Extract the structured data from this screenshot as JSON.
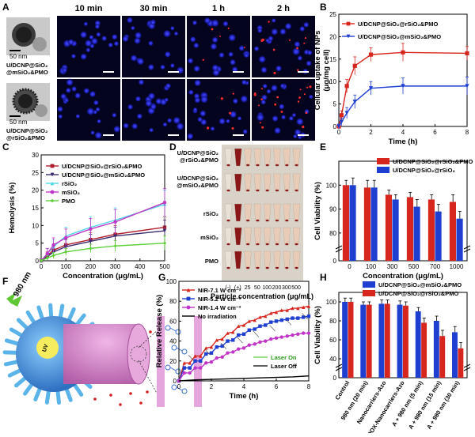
{
  "panels": {
    "A": {
      "letter": "A",
      "time_headers": [
        "10 min",
        "30 min",
        "1 h",
        "2 h"
      ],
      "rows": [
        {
          "label": [
            "U/DCNP@SiO₂",
            "@mSiO₂&PMO"
          ],
          "scale": "50 nm"
        },
        {
          "label": [
            "U/DCNP@SiO₂",
            "@rSiO₂&PMO"
          ],
          "scale": "50 nm"
        }
      ]
    },
    "D": {
      "letter": "D",
      "row_labels": [
        [
          "U/DCNP@SiO₂",
          "@rSiO₂&PMO"
        ],
        [
          "U/DCNP@SiO₂",
          "@mSiO₂&PMO"
        ],
        [
          "rSiO₂"
        ],
        [
          "mSiO₂"
        ],
        [
          "PMO"
        ]
      ],
      "tick_labels": [
        "(-)",
        "(+)",
        "25",
        "50",
        "100",
        "200",
        "300",
        "500"
      ],
      "xlabel": "Particle concentration (μg/mL)"
    },
    "F": {
      "letter": "F",
      "laser": "980 nm",
      "core_label": "UV"
    }
  },
  "chart_data": [
    {
      "id": "B",
      "type": "line",
      "letter": "B",
      "xlabel": "Time (h)",
      "ylabel": [
        "Cellular uptake of NPs",
        "(μg/mg cell)"
      ],
      "xlim": [
        0,
        8
      ],
      "ylim": [
        0,
        25
      ],
      "xticks": [
        "0",
        "2",
        "4",
        "6",
        "8"
      ],
      "yticks": [
        "0",
        "5",
        "10",
        "15",
        "20",
        "25"
      ],
      "series": [
        {
          "name": "U/DCNP@SiO₂@rSiO₂&PMO",
          "color": "#d7261e",
          "marker": "square",
          "x": [
            0,
            0.17,
            0.5,
            1,
            2,
            4,
            8
          ],
          "y": [
            0,
            2.5,
            9,
            13.5,
            16,
            16.5,
            16.3
          ],
          "err": [
            0.5,
            1,
            1.5,
            2,
            1.5,
            2,
            1.5
          ]
        },
        {
          "name": "U/DCNP@SiO₂@mSiO₂&PMO",
          "color": "#1f3fd1",
          "marker": "triangle-down",
          "x": [
            0,
            0.17,
            0.5,
            1,
            2,
            4,
            8
          ],
          "y": [
            0,
            1,
            3,
            5.5,
            8.5,
            9,
            9
          ],
          "err": [
            0.5,
            0.8,
            1.2,
            1.5,
            1.5,
            1.8,
            2
          ]
        }
      ]
    },
    {
      "id": "C",
      "type": "line",
      "letter": "C",
      "xlabel": "Concentration (μg/mL)",
      "ylabel": [
        "Hemolysis (%)"
      ],
      "xlim": [
        0,
        500
      ],
      "ylim": [
        0,
        30
      ],
      "xticks": [
        "0",
        "100",
        "200",
        "300",
        "400",
        "500"
      ],
      "yticks": [
        "0",
        "5",
        "10",
        "15",
        "20",
        "25",
        "30"
      ],
      "series": [
        {
          "name": "U/DCNP@SiO₂@rSiO₂&PMO",
          "color": "#b01e2e",
          "marker": "square",
          "x": [
            0,
            25,
            50,
            100,
            200,
            300,
            500
          ],
          "y": [
            0,
            1.5,
            3,
            4.5,
            6,
            7.5,
            9.5
          ],
          "err": [
            0.5,
            1,
            1.5,
            2,
            2,
            2.5,
            3
          ]
        },
        {
          "name": "U/DCNP@SiO₂@mSiO₂&PMO",
          "color": "#3a2a6e",
          "marker": "triangle-down",
          "x": [
            0,
            25,
            50,
            100,
            200,
            300,
            500
          ],
          "y": [
            0,
            1.2,
            2.5,
            4,
            5.5,
            7,
            8.5
          ],
          "err": [
            0.5,
            1,
            1.5,
            2,
            2,
            2.5,
            3
          ]
        },
        {
          "name": "rSiO₂",
          "color": "#4fd7e8",
          "marker": "triangle-up",
          "x": [
            0,
            25,
            50,
            100,
            200,
            300,
            500
          ],
          "y": [
            0,
            2,
            4,
            7,
            9.5,
            11.5,
            16
          ],
          "err": [
            0.5,
            1.5,
            2,
            2.5,
            3,
            3.5,
            4
          ]
        },
        {
          "name": "mSiO₂",
          "color": "#c034c8",
          "marker": "circle",
          "x": [
            0,
            25,
            50,
            100,
            200,
            300,
            500
          ],
          "y": [
            0,
            2,
            4.5,
            6.5,
            9,
            11,
            16.5
          ],
          "err": [
            0.5,
            1.5,
            2,
            2.5,
            3,
            3.5,
            4
          ]
        },
        {
          "name": "PMO",
          "color": "#5fd03a",
          "marker": "diamond",
          "x": [
            0,
            25,
            50,
            100,
            200,
            300,
            500
          ],
          "y": [
            0,
            0.8,
            1.5,
            2.5,
            3.5,
            4.2,
            5
          ],
          "err": [
            0.3,
            0.6,
            0.8,
            1,
            1.2,
            1.5,
            2
          ]
        }
      ]
    },
    {
      "id": "E",
      "type": "bar",
      "letter": "E",
      "xlabel": "Concentration (μg/mL)",
      "ylabel": [
        "Cell Viability (%)"
      ],
      "categories": [
        "0",
        "100",
        "300",
        "500",
        "700",
        "1000"
      ],
      "ylim": [
        0,
        110
      ],
      "yticks": [
        "0",
        "80",
        "90",
        "100"
      ],
      "axis_break": [
        10,
        75
      ],
      "series": [
        {
          "name": "U/DCNP@SiO₂@rSiO₂&PMO",
          "color": "#d7261e",
          "values": [
            100,
            99,
            96,
            95,
            94,
            93
          ],
          "err": [
            2,
            3,
            2,
            2,
            2,
            3
          ]
        },
        {
          "name": "U/DCNP@SiO₂@rSiO₂",
          "color": "#1f3fd1",
          "values": [
            100,
            99,
            94,
            91,
            89,
            86
          ],
          "err": [
            3,
            3,
            2,
            3,
            3,
            3
          ]
        }
      ]
    },
    {
      "id": "G",
      "type": "line",
      "letter": "G",
      "xlabel": "Time (h)",
      "ylabel": [
        "Relative Release (%)"
      ],
      "xlim": [
        0,
        8
      ],
      "ylim": [
        0,
        100
      ],
      "xticks": [
        "0",
        "2",
        "4",
        "6",
        "8"
      ],
      "yticks": [
        "0",
        "20",
        "40",
        "60",
        "80",
        "100"
      ],
      "laser_on_label": "Laser On",
      "laser_off_label": "Laser Off",
      "series": [
        {
          "name": "NIR-7.1 W cm⁻²",
          "color": "#d7261e",
          "marker": "triangle-up",
          "x": [
            0,
            0.33,
            0.67,
            1,
            1.33,
            1.67,
            2,
            2.33,
            2.67,
            3,
            3.33,
            3.67,
            4,
            4.33,
            4.67,
            5,
            5.33,
            5.67,
            6,
            6.33,
            6.67,
            7,
            7.33,
            7.67,
            8
          ],
          "y": [
            0,
            18,
            18,
            25,
            25,
            33,
            34,
            41,
            42,
            48,
            49,
            55,
            56,
            60,
            61,
            64,
            65,
            68,
            69,
            71,
            71,
            73,
            73,
            74,
            75
          ]
        },
        {
          "name": "NIR-5.2 W cm⁻²",
          "color": "#1f3fd1",
          "marker": "square",
          "x": [
            0,
            0.33,
            0.67,
            1,
            1.33,
            1.67,
            2,
            2.33,
            2.67,
            3,
            3.33,
            3.67,
            4,
            4.33,
            4.67,
            5,
            5.33,
            5.67,
            6,
            6.33,
            6.67,
            7,
            7.33,
            7.67,
            8
          ],
          "y": [
            0,
            13,
            13,
            20,
            20,
            27,
            28,
            34,
            35,
            40,
            41,
            46,
            47,
            51,
            52,
            55,
            56,
            59,
            60,
            61,
            62,
            63,
            63,
            64,
            65
          ]
        },
        {
          "name": "NIR-1.4 W cm⁻²",
          "color": "#c034c8",
          "marker": "circle",
          "x": [
            0,
            0.33,
            0.67,
            1,
            1.33,
            1.67,
            2,
            2.33,
            2.67,
            3,
            3.33,
            3.67,
            4,
            4.33,
            4.67,
            5,
            5.33,
            5.67,
            6,
            6.33,
            6.67,
            7,
            7.33,
            7.67,
            8
          ],
          "y": [
            0,
            8,
            8,
            13,
            13,
            18,
            19,
            23,
            24,
            28,
            29,
            32,
            33,
            36,
            37,
            39,
            40,
            42,
            43,
            44,
            45,
            46,
            47,
            48,
            48
          ]
        },
        {
          "name": "No irradiation",
          "color": "#000000",
          "marker": "none",
          "x": [
            0,
            1,
            2,
            3,
            4,
            5,
            6,
            7,
            8
          ],
          "y": [
            0,
            1,
            1.5,
            2,
            2.5,
            3,
            3.5,
            4,
            5
          ]
        }
      ]
    },
    {
      "id": "H",
      "type": "bar",
      "letter": "H",
      "ylabel": [
        "Cell Viability (%)"
      ],
      "categories": [
        "Control",
        "980 nm (20 min)",
        "Nanocarriers-Azo",
        "DOX-Nanocarriers-Azo",
        "A + 980 nm (5 min)",
        "A + 980 nm (15 min)",
        "A + 980 nm (30 min)"
      ],
      "category_prefix": "(A) ",
      "ylim": [
        0,
        110
      ],
      "yticks": [
        "0",
        "40",
        "60",
        "80",
        "100"
      ],
      "axis_break": [
        10,
        35
      ],
      "series": [
        {
          "name": "U/DCNP@SiO₂@mSiO₂&PMO",
          "color": "#1f3fd1",
          "values": [
            100,
            97,
            98,
            97,
            90,
            80,
            68
          ],
          "err": [
            4,
            3,
            4,
            4,
            4,
            5,
            6
          ]
        },
        {
          "name": "U/DCNP@SiO₂@rSiO₂&PMO",
          "color": "#d7261e",
          "values": [
            100,
            97,
            98,
            96,
            78,
            64,
            51
          ],
          "err": [
            4,
            3,
            4,
            4,
            5,
            6,
            6
          ]
        }
      ]
    }
  ]
}
